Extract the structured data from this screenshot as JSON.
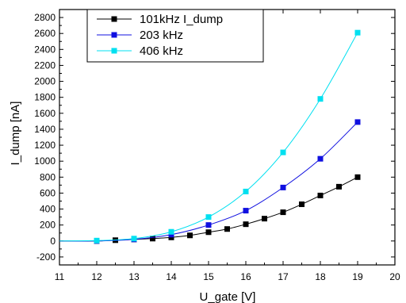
{
  "chart_data": {
    "type": "line",
    "xlabel": "U_gate [V]",
    "ylabel": "I_dump [nA]",
    "xlim": [
      11,
      20
    ],
    "ylim": [
      -300,
      2900
    ],
    "xticks": [
      11,
      12,
      13,
      14,
      15,
      16,
      17,
      18,
      19,
      20
    ],
    "yticks": [
      -200,
      0,
      200,
      400,
      600,
      800,
      1000,
      1200,
      1400,
      1600,
      1800,
      2000,
      2200,
      2400,
      2600,
      2800
    ],
    "grid": false,
    "legend_position": "top-left",
    "series": [
      {
        "name": "101kHz I_dump",
        "color": "#000000",
        "x": [
          11,
          12,
          12.5,
          13,
          13.5,
          14,
          14.5,
          15,
          15.5,
          16,
          16.5,
          17,
          17.5,
          18,
          18.5,
          19
        ],
        "y": [
          0,
          0,
          10,
          20,
          30,
          45,
          70,
          110,
          150,
          210,
          280,
          360,
          460,
          570,
          680,
          800
        ]
      },
      {
        "name": "203 kHz",
        "color": "#1010e0",
        "x": [
          11,
          12,
          13,
          14,
          15,
          16,
          17,
          18,
          19
        ],
        "y": [
          0,
          0,
          20,
          80,
          200,
          380,
          670,
          1030,
          1490
        ]
      },
      {
        "name": "406 kHz",
        "color": "#00e0f0",
        "x": [
          11,
          12,
          13,
          14,
          15,
          16,
          17,
          18,
          19
        ],
        "y": [
          0,
          5,
          30,
          115,
          300,
          620,
          1110,
          1780,
          2610
        ]
      }
    ]
  }
}
